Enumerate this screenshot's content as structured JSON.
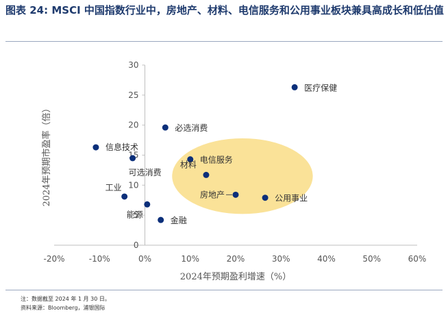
{
  "header": {
    "figure_label": "图表 24:",
    "title_text": "MSCI 中国指数行业中，房地产、材料、电信服务和公用事业板块兼具高成长和低估值"
  },
  "notes": {
    "note": "注：数据截至 2024 年 1 月 30 日。",
    "source": "资料来源：Bloomberg，浦银国际"
  },
  "chart_data": {
    "type": "scatter",
    "xlabel": "2024年预期盈利增速（%）",
    "ylabel": "2024年预期市盈率（倍）",
    "xlim": [
      -0.2,
      0.6
    ],
    "ylim": [
      0,
      30
    ],
    "x_ticks": [
      -0.2,
      -0.1,
      0.0,
      0.1,
      0.2,
      0.3,
      0.4,
      0.5,
      0.6
    ],
    "x_tick_labels": [
      "-20%",
      "-10%",
      "0%",
      "10%",
      "20%",
      "30%",
      "40%",
      "50%",
      "60%"
    ],
    "y_ticks": [
      0,
      5,
      10,
      15,
      20,
      25,
      30
    ],
    "y_tick_labels": [
      "0",
      "5",
      "10",
      "15",
      "20",
      "25",
      "30"
    ],
    "grid": false,
    "marker_color": "#0b2f7a",
    "highlight_color": "#f9dd86",
    "points": [
      {
        "name": "医疗保健",
        "x": 0.33,
        "y": 26.3
      },
      {
        "name": "必选消费",
        "x": 0.045,
        "y": 19.6
      },
      {
        "name": "信息技术",
        "x": -0.108,
        "y": 16.3
      },
      {
        "name": "可选消费",
        "x": -0.027,
        "y": 14.5
      },
      {
        "name": "电信服务",
        "x": 0.1,
        "y": 14.3
      },
      {
        "name": "材料",
        "x": 0.135,
        "y": 11.7
      },
      {
        "name": "房地产",
        "x": 0.2,
        "y": 8.4
      },
      {
        "name": "公用事业",
        "x": 0.265,
        "y": 7.9
      },
      {
        "name": "工业",
        "x": -0.045,
        "y": 8.1
      },
      {
        "name": "能源",
        "x": 0.005,
        "y": 6.8
      },
      {
        "name": "金融",
        "x": 0.035,
        "y": 4.2
      }
    ],
    "highlight_region": {
      "center_x": 0.215,
      "center_y": 11.5,
      "radius_x": 0.155,
      "radius_y": 6.3
    }
  }
}
